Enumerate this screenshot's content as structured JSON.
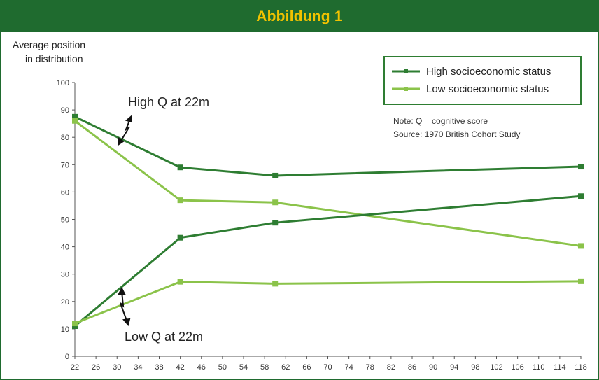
{
  "header": {
    "title": "Abbildung 1"
  },
  "chart_data": {
    "type": "line",
    "ylabel_lines": [
      "Average position",
      "in distribution"
    ],
    "xlabel": "",
    "ylim": [
      0,
      100
    ],
    "yticks": [
      0,
      10,
      20,
      30,
      40,
      50,
      60,
      70,
      80,
      90,
      100
    ],
    "xlim": [
      22,
      118
    ],
    "xticks": [
      22,
      26,
      30,
      34,
      38,
      42,
      46,
      50,
      54,
      58,
      62,
      66,
      70,
      74,
      78,
      82,
      86,
      90,
      94,
      98,
      102,
      106,
      110,
      114,
      118
    ],
    "grid": false,
    "legend_position": "top-right",
    "legend": [
      {
        "label": "High socioeconomic status",
        "color": "#2e7d32"
      },
      {
        "label": "Low socioeconomic status",
        "color": "#8bc34a"
      }
    ],
    "series": [
      {
        "legend_index": 0,
        "color": "#2e7d32",
        "x": [
          22,
          42,
          60,
          118
        ],
        "y": [
          87.5,
          69,
          66,
          69.3
        ]
      },
      {
        "legend_index": 1,
        "color": "#8bc34a",
        "x": [
          22,
          42,
          60,
          118
        ],
        "y": [
          86,
          57,
          56.2,
          40.3
        ]
      },
      {
        "legend_index": 0,
        "color": "#2e7d32",
        "x": [
          22,
          42,
          60,
          118
        ],
        "y": [
          11,
          43.3,
          48.8,
          58.5
        ]
      },
      {
        "legend_index": 1,
        "color": "#8bc34a",
        "x": [
          22,
          42,
          60,
          118
        ],
        "y": [
          12,
          27.2,
          26.5,
          27.4
        ]
      }
    ],
    "annotations": [
      {
        "text": "High Q at 22m"
      },
      {
        "text": "Low Q at 22m"
      }
    ],
    "notes": [
      "Note: Q = cognitive score",
      "Source: 1970 British Cohort Study"
    ]
  }
}
